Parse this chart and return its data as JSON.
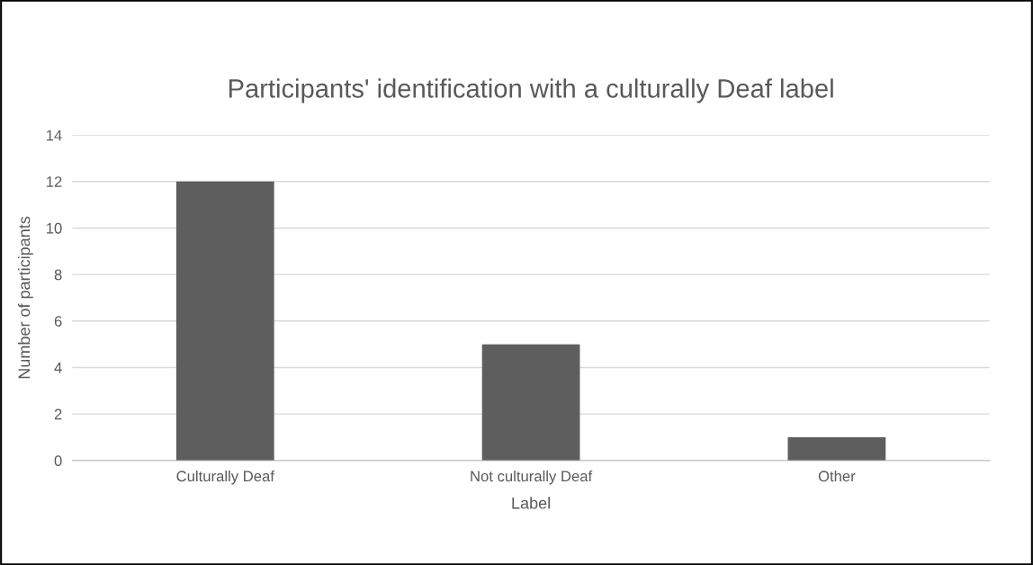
{
  "chart_data": {
    "type": "bar",
    "title": "Participants' identification with a culturally Deaf label",
    "xlabel": "Label",
    "ylabel": "Number of participants",
    "categories": [
      "Culturally Deaf",
      "Not culturally Deaf",
      "Other"
    ],
    "values": [
      12,
      5,
      1
    ],
    "color": "#5e5e5e",
    "ylim": [
      0,
      14
    ],
    "yticks": [
      0,
      2,
      4,
      6,
      8,
      10,
      12,
      14
    ],
    "grid": "y"
  }
}
